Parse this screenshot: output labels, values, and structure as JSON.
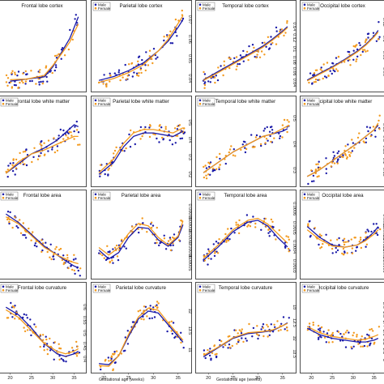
{
  "colors": {
    "male": "#1a1aa8",
    "female": "#f39a1e",
    "male_fit": "#1a1aa8",
    "female_fit": "#f39a1e"
  },
  "x_label": "Gestational age (weeks)",
  "x_ticks": [
    20,
    25,
    30,
    35
  ],
  "x_range": [
    18,
    37
  ],
  "legend": [
    "Male",
    "Female"
  ],
  "chart_data": [
    {
      "type": "scatter",
      "title": "Frontal lobe cortex",
      "ylim": [
        0.05,
        0.16
      ],
      "yticks": [],
      "legend": false,
      "male": [
        [
          20,
          0.06
        ],
        [
          24,
          0.063
        ],
        [
          28,
          0.066
        ],
        [
          30,
          0.08
        ],
        [
          32,
          0.1
        ],
        [
          34,
          0.12
        ],
        [
          35,
          0.135
        ],
        [
          36,
          0.15
        ]
      ],
      "female": [
        [
          20,
          0.062
        ],
        [
          24,
          0.063
        ],
        [
          28,
          0.068
        ],
        [
          30,
          0.082
        ],
        [
          32,
          0.098
        ],
        [
          34,
          0.115
        ],
        [
          35,
          0.128
        ],
        [
          36,
          0.14
        ]
      ]
    },
    {
      "type": "scatter",
      "title": "Parietal lobe cortex",
      "ylim": [
        0.035,
        0.075
      ],
      "yticks": [
        0.04,
        0.05,
        0.06,
        0.07
      ],
      "legend": true,
      "male": [
        [
          19,
          0.039
        ],
        [
          22,
          0.041
        ],
        [
          25,
          0.044
        ],
        [
          28,
          0.048
        ],
        [
          31,
          0.054
        ],
        [
          33,
          0.059
        ],
        [
          35,
          0.066
        ],
        [
          36,
          0.07
        ]
      ],
      "female": [
        [
          19,
          0.038
        ],
        [
          22,
          0.04
        ],
        [
          25,
          0.043
        ],
        [
          28,
          0.047
        ],
        [
          31,
          0.054
        ],
        [
          33,
          0.06
        ],
        [
          35,
          0.068
        ],
        [
          36,
          0.072
        ]
      ]
    },
    {
      "type": "scatter",
      "title": "Temporal lobe cortex",
      "ylim": [
        0.03,
        0.17
      ],
      "yticks": [
        0.04,
        0.06,
        0.08,
        0.1,
        0.12,
        0.14
      ],
      "legend": true,
      "male": [
        [
          19,
          0.045
        ],
        [
          22,
          0.06
        ],
        [
          25,
          0.075
        ],
        [
          28,
          0.09
        ],
        [
          31,
          0.105
        ],
        [
          33,
          0.118
        ],
        [
          35,
          0.132
        ],
        [
          36,
          0.14
        ]
      ],
      "female": [
        [
          19,
          0.044
        ],
        [
          22,
          0.058
        ],
        [
          25,
          0.073
        ],
        [
          28,
          0.088
        ],
        [
          31,
          0.103
        ],
        [
          33,
          0.116
        ],
        [
          35,
          0.13
        ],
        [
          36,
          0.138
        ]
      ]
    },
    {
      "type": "scatter",
      "title": "Occipital lobe cortex",
      "ylim": [
        0.04,
        0.135
      ],
      "yticks": [
        0.06,
        0.08,
        0.1,
        0.12
      ],
      "legend": true,
      "male": [
        [
          19,
          0.05
        ],
        [
          22,
          0.058
        ],
        [
          25,
          0.066
        ],
        [
          28,
          0.075
        ],
        [
          31,
          0.085
        ],
        [
          33,
          0.093
        ],
        [
          35,
          0.103
        ],
        [
          36,
          0.11
        ]
      ],
      "female": [
        [
          19,
          0.049
        ],
        [
          22,
          0.057
        ],
        [
          25,
          0.065
        ],
        [
          28,
          0.074
        ],
        [
          31,
          0.084
        ],
        [
          33,
          0.092
        ],
        [
          35,
          0.102
        ],
        [
          36,
          0.108
        ]
      ]
    },
    {
      "type": "scatter",
      "title": "Frontal lobe white matter",
      "ylim": [
        0.2,
        0.6
      ],
      "yticks": [],
      "legend": true,
      "male": [
        [
          19,
          0.25
        ],
        [
          22,
          0.3
        ],
        [
          25,
          0.35
        ],
        [
          28,
          0.38
        ],
        [
          31,
          0.42
        ],
        [
          33,
          0.46
        ],
        [
          35,
          0.5
        ],
        [
          36,
          0.49
        ]
      ],
      "female": [
        [
          19,
          0.25
        ],
        [
          22,
          0.31
        ],
        [
          25,
          0.35
        ],
        [
          28,
          0.37
        ],
        [
          31,
          0.4
        ],
        [
          33,
          0.42
        ],
        [
          35,
          0.44
        ],
        [
          36,
          0.44
        ]
      ]
    },
    {
      "type": "scatter",
      "title": "Parietal lobe white matter",
      "ylim": [
        0.15,
        0.6
      ],
      "yticks": [
        0.2,
        0.3,
        0.4,
        0.5
      ],
      "legend": true,
      "male": [
        [
          19,
          0.2
        ],
        [
          22,
          0.27
        ],
        [
          24,
          0.36
        ],
        [
          26,
          0.42
        ],
        [
          28,
          0.44
        ],
        [
          30,
          0.44
        ],
        [
          32,
          0.43
        ],
        [
          34,
          0.42
        ],
        [
          36,
          0.45
        ]
      ],
      "female": [
        [
          19,
          0.21
        ],
        [
          22,
          0.29
        ],
        [
          24,
          0.38
        ],
        [
          26,
          0.44
        ],
        [
          28,
          0.46
        ],
        [
          30,
          0.46
        ],
        [
          32,
          0.45
        ],
        [
          34,
          0.44
        ],
        [
          36,
          0.47
        ]
      ]
    },
    {
      "type": "scatter",
      "title": "Temporal lobe white matter",
      "ylim": [
        0.25,
        0.55
      ],
      "yticks": [
        0.3,
        0.4,
        0.5
      ],
      "legend": true,
      "male": [
        [
          19,
          0.29
        ],
        [
          22,
          0.33
        ],
        [
          25,
          0.37
        ],
        [
          28,
          0.4
        ],
        [
          31,
          0.43
        ],
        [
          33,
          0.44
        ],
        [
          35,
          0.45
        ],
        [
          36,
          0.46
        ]
      ],
      "female": [
        [
          19,
          0.29
        ],
        [
          22,
          0.33
        ],
        [
          25,
          0.37
        ],
        [
          28,
          0.4
        ],
        [
          31,
          0.43
        ],
        [
          33,
          0.44
        ],
        [
          35,
          0.46
        ],
        [
          36,
          0.47
        ]
      ]
    },
    {
      "type": "scatter",
      "title": "Occipital lobe white matter",
      "ylim": [
        0.1,
        0.45
      ],
      "yticks": [
        0.15,
        0.2,
        0.25,
        0.3,
        0.35
      ],
      "legend": true,
      "male": [
        [
          19,
          0.13
        ],
        [
          22,
          0.16
        ],
        [
          25,
          0.2
        ],
        [
          28,
          0.24
        ],
        [
          31,
          0.28
        ],
        [
          33,
          0.31
        ],
        [
          35,
          0.34
        ],
        [
          36,
          0.36
        ]
      ],
      "female": [
        [
          19,
          0.13
        ],
        [
          22,
          0.16
        ],
        [
          25,
          0.2
        ],
        [
          28,
          0.24
        ],
        [
          31,
          0.28
        ],
        [
          33,
          0.31
        ],
        [
          35,
          0.34
        ],
        [
          36,
          0.37
        ]
      ]
    },
    {
      "type": "scatter",
      "title": "Frontal lobe area",
      "ylim": [
        5e-05,
        0.00018
      ],
      "yticks": [],
      "legend": true,
      "male": [
        [
          19,
          0.000155
        ],
        [
          22,
          0.00014
        ],
        [
          25,
          0.00012
        ],
        [
          28,
          0.0001
        ],
        [
          31,
          8.5e-05
        ],
        [
          33,
          7.5e-05
        ],
        [
          35,
          6.6e-05
        ],
        [
          36,
          6.3e-05
        ]
      ],
      "female": [
        [
          19,
          0.00015
        ],
        [
          22,
          0.000138
        ],
        [
          25,
          0.000118
        ],
        [
          28,
          9.8e-05
        ],
        [
          31,
          8.5e-05
        ],
        [
          33,
          7.8e-05
        ],
        [
          35,
          7.2e-05
        ],
        [
          36,
          7e-05
        ]
      ]
    },
    {
      "type": "scatter",
      "title": "Parietal lobe area",
      "ylim": [
        4e-05,
        0.0001
      ],
      "yticks": [
        5e-05,
        6e-05,
        7e-05,
        8e-05,
        9e-05
      ],
      "legend": true,
      "male": [
        [
          19,
          6e-05
        ],
        [
          21,
          5.3e-05
        ],
        [
          23,
          5.8e-05
        ],
        [
          25,
          7e-05
        ],
        [
          27,
          7.8e-05
        ],
        [
          29,
          7.7e-05
        ],
        [
          31,
          6.8e-05
        ],
        [
          33,
          6.3e-05
        ],
        [
          35,
          7e-05
        ],
        [
          36,
          8e-05
        ]
      ],
      "female": [
        [
          19,
          6.2e-05
        ],
        [
          21,
          5.6e-05
        ],
        [
          23,
          6.2e-05
        ],
        [
          25,
          7.3e-05
        ],
        [
          27,
          8.1e-05
        ],
        [
          29,
          7.9e-05
        ],
        [
          31,
          7e-05
        ],
        [
          33,
          6.4e-05
        ],
        [
          35,
          7.1e-05
        ],
        [
          36,
          8.3e-05
        ]
      ]
    },
    {
      "type": "scatter",
      "title": "Temporal lobe area",
      "ylim": [
        0.00025,
        0.00065
      ],
      "yticks": [
        0.0003,
        0.0004,
        0.0005,
        0.0006
      ],
      "legend": true,
      "male": [
        [
          19,
          0.00033
        ],
        [
          22,
          0.0004
        ],
        [
          25,
          0.00048
        ],
        [
          28,
          0.00053
        ],
        [
          30,
          0.00054
        ],
        [
          32,
          0.00051
        ],
        [
          34,
          0.00045
        ],
        [
          36,
          0.0004
        ]
      ],
      "female": [
        [
          19,
          0.00034
        ],
        [
          22,
          0.00041
        ],
        [
          25,
          0.00049
        ],
        [
          28,
          0.00054
        ],
        [
          30,
          0.00055
        ],
        [
          32,
          0.00052
        ],
        [
          34,
          0.00047
        ],
        [
          36,
          0.00042
        ]
      ]
    },
    {
      "type": "scatter",
      "title": "Occipital lobe area",
      "ylim": [
        5e-05,
        0.00012
      ],
      "yticks": [
        6e-05,
        7e-05,
        8e-05,
        9e-05,
        0.0001
      ],
      "legend": true,
      "male": [
        [
          19,
          9.5e-05
        ],
        [
          22,
          8.5e-05
        ],
        [
          25,
          7.8e-05
        ],
        [
          28,
          7.6e-05
        ],
        [
          31,
          7.8e-05
        ],
        [
          33,
          8.3e-05
        ],
        [
          35,
          9e-05
        ],
        [
          36,
          9.5e-05
        ]
      ],
      "female": [
        [
          19,
          9.2e-05
        ],
        [
          22,
          8.3e-05
        ],
        [
          25,
          7.7e-05
        ],
        [
          28,
          7.6e-05
        ],
        [
          31,
          7.8e-05
        ],
        [
          33,
          8.2e-05
        ],
        [
          35,
          8.8e-05
        ],
        [
          36,
          9.2e-05
        ]
      ]
    },
    {
      "type": "scatter",
      "title": "Frontal lobe curvature",
      "ylim": [
        0.36,
        0.66
      ],
      "yticks": [
        0.4,
        0.45,
        0.5,
        0.55,
        0.6
      ],
      "legend": true,
      "male": [
        [
          19,
          0.6
        ],
        [
          22,
          0.57
        ],
        [
          25,
          0.52
        ],
        [
          28,
          0.46
        ],
        [
          31,
          0.42
        ],
        [
          33,
          0.41
        ],
        [
          35,
          0.42
        ],
        [
          36,
          0.43
        ]
      ],
      "female": [
        [
          19,
          0.59
        ],
        [
          22,
          0.56
        ],
        [
          25,
          0.51
        ],
        [
          28,
          0.46
        ],
        [
          31,
          0.43
        ],
        [
          33,
          0.42
        ],
        [
          35,
          0.43
        ],
        [
          36,
          0.44
        ]
      ]
    },
    {
      "type": "scatter",
      "title": "Parietal lobe curvature",
      "ylim": [
        10.5,
        12.5
      ],
      "yticks": [
        11.0,
        11.5,
        12.0
      ],
      "legend": true,
      "male": [
        [
          19,
          10.65
        ],
        [
          21,
          10.62
        ],
        [
          23,
          10.85
        ],
        [
          25,
          11.35
        ],
        [
          27,
          11.8
        ],
        [
          29,
          12.0
        ],
        [
          31,
          11.95
        ],
        [
          33,
          11.65
        ],
        [
          35,
          11.35
        ],
        [
          36,
          11.2
        ]
      ],
      "female": [
        [
          19,
          10.6
        ],
        [
          21,
          10.58
        ],
        [
          23,
          10.85
        ],
        [
          25,
          11.4
        ],
        [
          27,
          11.85
        ],
        [
          29,
          12.08
        ],
        [
          31,
          12.02
        ],
        [
          33,
          11.7
        ],
        [
          35,
          11.4
        ],
        [
          36,
          11.25
        ]
      ]
    },
    {
      "type": "scatter",
      "title": "Temporal lobe curvature",
      "ylim": [
        11.0,
        13.5
      ],
      "yticks": [
        11.5,
        12.0,
        12.5,
        13.0
      ],
      "legend": true,
      "male": [
        [
          19,
          11.4
        ],
        [
          22,
          11.7
        ],
        [
          25,
          12.0
        ],
        [
          28,
          12.15
        ],
        [
          31,
          12.2
        ],
        [
          33,
          12.25
        ],
        [
          35,
          12.4
        ],
        [
          36,
          12.5
        ]
      ],
      "female": [
        [
          19,
          11.45
        ],
        [
          22,
          11.72
        ],
        [
          25,
          12.02
        ],
        [
          28,
          12.18
        ],
        [
          31,
          12.22
        ],
        [
          33,
          12.27
        ],
        [
          35,
          12.4
        ],
        [
          36,
          12.48
        ]
      ]
    },
    {
      "type": "scatter",
      "title": "Occipital lobe curvature",
      "ylim": [
        1.9,
        2.75
      ],
      "yticks": [
        2.0,
        2.1,
        2.2,
        2.3,
        2.4,
        2.5,
        2.6
      ],
      "legend": true,
      "male": [
        [
          19,
          2.35
        ],
        [
          22,
          2.28
        ],
        [
          25,
          2.24
        ],
        [
          28,
          2.22
        ],
        [
          31,
          2.2
        ],
        [
          33,
          2.2
        ],
        [
          35,
          2.22
        ],
        [
          36,
          2.24
        ]
      ],
      "female": [
        [
          19,
          2.37
        ],
        [
          22,
          2.3
        ],
        [
          25,
          2.26
        ],
        [
          28,
          2.24
        ],
        [
          31,
          2.22
        ],
        [
          33,
          2.23
        ],
        [
          35,
          2.26
        ],
        [
          36,
          2.28
        ]
      ]
    }
  ]
}
